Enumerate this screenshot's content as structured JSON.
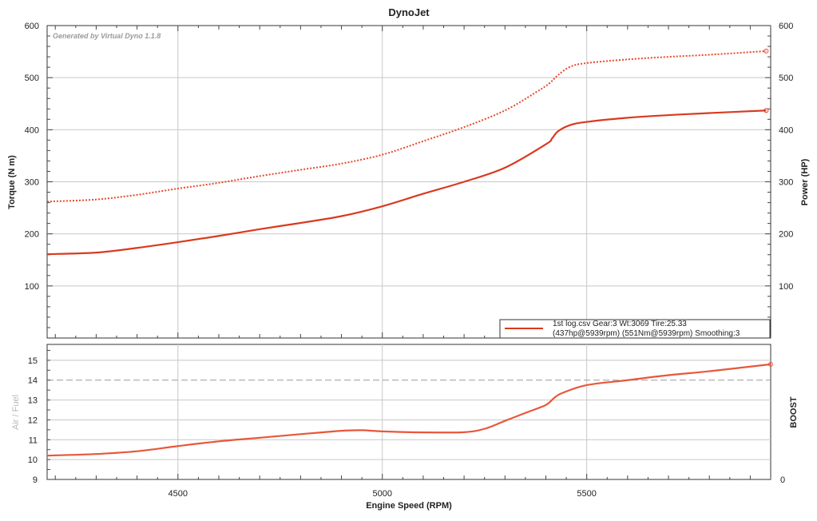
{
  "title": "DynoJet",
  "watermark": "Generated by Virtual Dyno 1.1.8",
  "chart_data": [
    {
      "type": "line",
      "panel": "top",
      "ylabel_left": "Torque (N m)",
      "ylabel_right": "Power (HP)",
      "xlim": [
        4180,
        5950
      ],
      "ylim": [
        0,
        600
      ],
      "y_ticks": [
        "100",
        "200",
        "300",
        "400",
        "500",
        "600"
      ],
      "grid": true,
      "legend": {
        "position": "bottom-right",
        "line1": "1st log.csv Gear:3 Wt:3069 Tire:25.33",
        "line2": "(437hp@5939rpm) (551Nm@5939rpm) Smoothing:3"
      },
      "series": [
        {
          "style": "dotted",
          "color": "#e8482a",
          "x": [
            4180,
            4300,
            4400,
            4500,
            4600,
            4700,
            4800,
            4900,
            5000,
            5100,
            5200,
            5300,
            5380,
            5410,
            5430,
            5460,
            5500,
            5600,
            5700,
            5800,
            5939
          ],
          "y": [
            262,
            266,
            275,
            287,
            298,
            311,
            323,
            335,
            352,
            378,
            405,
            437,
            474,
            490,
            505,
            521,
            528,
            535,
            540,
            544,
            551
          ]
        },
        {
          "style": "solid",
          "color": "#d93a1f",
          "x": [
            4180,
            4300,
            4400,
            4500,
            4600,
            4700,
            4800,
            4900,
            5000,
            5100,
            5200,
            5300,
            5400,
            5415,
            5430,
            5460,
            5500,
            5600,
            5700,
            5800,
            5939
          ],
          "y": [
            161,
            164,
            173,
            184,
            196,
            209,
            221,
            234,
            253,
            277,
            300,
            327,
            372,
            383,
            397,
            409,
            415,
            423,
            428,
            432,
            437
          ]
        }
      ]
    },
    {
      "type": "line",
      "panel": "bottom",
      "ylabel_left": "Air / Fuel",
      "ylabel_right": "BOOST",
      "xlabel": "Engine Speed (RPM)",
      "xlim": [
        4180,
        5950
      ],
      "ylim": [
        9,
        15.8
      ],
      "x_ticks": [
        "4500",
        "5000",
        "5500"
      ],
      "y_ticks": [
        "9",
        "10",
        "11",
        "12",
        "13",
        "14",
        "15"
      ],
      "right_ticks": [
        "0"
      ],
      "grid": true,
      "series": [
        {
          "style": "solid",
          "color": "#e8573a",
          "x": [
            4180,
            4300,
            4400,
            4500,
            4600,
            4700,
            4800,
            4900,
            4950,
            5000,
            5100,
            5200,
            5250,
            5300,
            5350,
            5400,
            5420,
            5440,
            5500,
            5600,
            5700,
            5800,
            5950
          ],
          "y": [
            10.2,
            10.28,
            10.42,
            10.68,
            10.92,
            11.1,
            11.28,
            11.45,
            11.48,
            11.42,
            11.37,
            11.38,
            11.55,
            11.95,
            12.35,
            12.75,
            13.1,
            13.35,
            13.75,
            14.0,
            14.25,
            14.45,
            14.8
          ]
        }
      ]
    }
  ]
}
